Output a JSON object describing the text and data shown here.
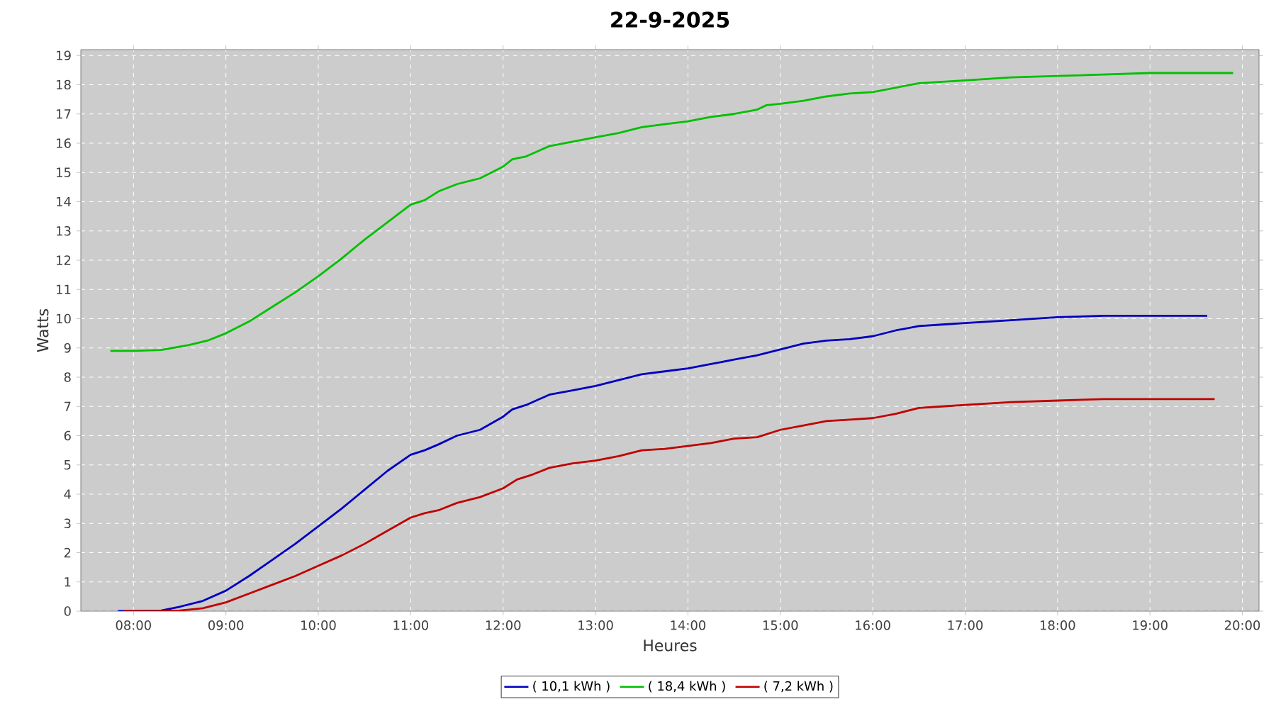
{
  "chart_data": {
    "type": "line",
    "title": "22-9-2025",
    "xlabel": "Heures",
    "ylabel": "Watts",
    "xlim": [
      7.43,
      20.18
    ],
    "ylim": [
      0,
      19.2
    ],
    "xticks": [
      {
        "value": 8,
        "label": "08:00"
      },
      {
        "value": 9,
        "label": "09:00"
      },
      {
        "value": 10,
        "label": "10:00"
      },
      {
        "value": 11,
        "label": "11:00"
      },
      {
        "value": 12,
        "label": "12:00"
      },
      {
        "value": 13,
        "label": "13:00"
      },
      {
        "value": 14,
        "label": "14:00"
      },
      {
        "value": 15,
        "label": "15:00"
      },
      {
        "value": 16,
        "label": "16:00"
      },
      {
        "value": 17,
        "label": "17:00"
      },
      {
        "value": 18,
        "label": "18:00"
      },
      {
        "value": 19,
        "label": "19:00"
      },
      {
        "value": 20,
        "label": "20:00"
      }
    ],
    "yticks": [
      0,
      1,
      2,
      3,
      4,
      5,
      6,
      7,
      8,
      9,
      10,
      11,
      12,
      13,
      14,
      15,
      16,
      17,
      18,
      19
    ],
    "grid": true,
    "legend": "bottom",
    "line_style": "solid",
    "series": [
      {
        "name": "( 10,1 kWh )",
        "color": "#0000c0",
        "x": [
          7.83,
          8.3,
          8.5,
          8.75,
          9.0,
          9.25,
          9.5,
          9.75,
          10.0,
          10.25,
          10.5,
          10.75,
          11.0,
          11.15,
          11.3,
          11.5,
          11.75,
          12.0,
          12.1,
          12.25,
          12.5,
          12.75,
          13.0,
          13.25,
          13.5,
          13.75,
          14.0,
          14.25,
          14.5,
          14.75,
          15.0,
          15.25,
          15.5,
          15.75,
          16.0,
          16.25,
          16.5,
          16.75,
          17.0,
          17.5,
          18.0,
          18.5,
          19.0,
          19.62
        ],
        "values": [
          0,
          0.02,
          0.15,
          0.35,
          0.7,
          1.2,
          1.75,
          2.3,
          2.9,
          3.5,
          4.15,
          4.8,
          5.35,
          5.5,
          5.7,
          6.0,
          6.2,
          6.65,
          6.9,
          7.05,
          7.4,
          7.55,
          7.7,
          7.9,
          8.1,
          8.2,
          8.3,
          8.45,
          8.6,
          8.75,
          8.95,
          9.15,
          9.25,
          9.3,
          9.4,
          9.6,
          9.75,
          9.8,
          9.85,
          9.95,
          10.05,
          10.1,
          10.1,
          10.1
        ]
      },
      {
        "name": "( 18,4 kWh )",
        "color": "#00c000",
        "x": [
          7.75,
          8.0,
          8.3,
          8.6,
          8.8,
          9.0,
          9.25,
          9.5,
          9.75,
          10.0,
          10.25,
          10.5,
          10.75,
          11.0,
          11.15,
          11.3,
          11.5,
          11.75,
          12.0,
          12.1,
          12.25,
          12.5,
          12.75,
          13.0,
          13.25,
          13.5,
          13.75,
          14.0,
          14.25,
          14.5,
          14.75,
          14.85,
          15.0,
          15.25,
          15.5,
          15.75,
          16.0,
          16.25,
          16.5,
          16.75,
          17.0,
          17.5,
          18.0,
          18.5,
          19.0,
          19.5,
          19.9
        ],
        "values": [
          8.9,
          8.9,
          8.93,
          9.1,
          9.25,
          9.5,
          9.9,
          10.4,
          10.9,
          11.45,
          12.05,
          12.7,
          13.3,
          13.9,
          14.05,
          14.35,
          14.6,
          14.8,
          15.2,
          15.45,
          15.55,
          15.9,
          16.05,
          16.2,
          16.35,
          16.55,
          16.65,
          16.75,
          16.9,
          17.0,
          17.15,
          17.3,
          17.35,
          17.45,
          17.6,
          17.7,
          17.75,
          17.9,
          18.05,
          18.1,
          18.15,
          18.25,
          18.3,
          18.35,
          18.4,
          18.4,
          18.4
        ]
      },
      {
        "name": "( 7,2 kWh )",
        "color": "#c00000",
        "x": [
          7.9,
          8.3,
          8.5,
          8.75,
          9.0,
          9.25,
          9.5,
          9.75,
          10.0,
          10.25,
          10.5,
          10.75,
          11.0,
          11.15,
          11.3,
          11.5,
          11.75,
          12.0,
          12.15,
          12.3,
          12.5,
          12.75,
          13.0,
          13.25,
          13.5,
          13.75,
          14.0,
          14.25,
          14.5,
          14.75,
          15.0,
          15.25,
          15.5,
          15.75,
          16.0,
          16.25,
          16.5,
          16.75,
          17.0,
          17.5,
          18.0,
          18.5,
          19.0,
          19.7
        ],
        "values": [
          0,
          0,
          0.02,
          0.1,
          0.3,
          0.6,
          0.9,
          1.2,
          1.55,
          1.9,
          2.3,
          2.75,
          3.2,
          3.35,
          3.45,
          3.7,
          3.9,
          4.2,
          4.5,
          4.65,
          4.9,
          5.05,
          5.15,
          5.3,
          5.5,
          5.55,
          5.65,
          5.75,
          5.9,
          5.95,
          6.2,
          6.35,
          6.5,
          6.55,
          6.6,
          6.75,
          6.95,
          7.0,
          7.05,
          7.15,
          7.2,
          7.25,
          7.25,
          7.25
        ]
      }
    ]
  }
}
